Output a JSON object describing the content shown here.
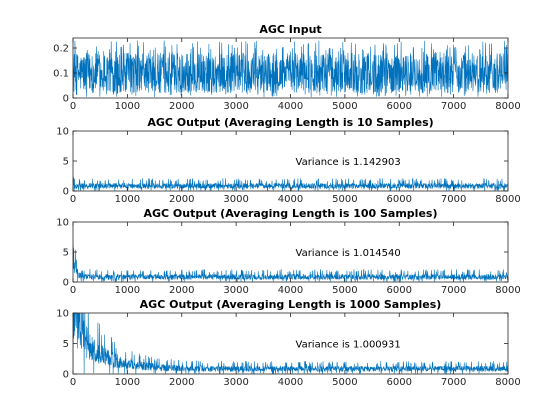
{
  "chart_data": [
    {
      "type": "line",
      "title": "AGC Input",
      "xlabel": "",
      "ylabel": "",
      "xlim": [
        0,
        8000
      ],
      "ylim": [
        0,
        0.24
      ],
      "xticks": [
        0,
        1000,
        2000,
        3000,
        4000,
        5000,
        6000,
        7000,
        8000
      ],
      "yticks": [
        0,
        0.1,
        0.2
      ],
      "grid": false,
      "color": "#0072bd",
      "series": [
        {
          "description": "noise signal, 8000 samples",
          "x_range": [
            0,
            8000
          ],
          "baseline": 0.1,
          "band_approx": [
            0.0,
            0.23
          ]
        }
      ],
      "annotation": ""
    },
    {
      "type": "line",
      "title": "AGC Output (Averaging Length is 10 Samples)",
      "xlabel": "",
      "ylabel": "",
      "xlim": [
        0,
        8000
      ],
      "ylim": [
        0,
        10
      ],
      "xticks": [
        0,
        1000,
        2000,
        3000,
        4000,
        5000,
        6000,
        7000,
        8000
      ],
      "yticks": [
        0,
        5,
        10
      ],
      "grid": false,
      "color": "#0072bd",
      "series": [
        {
          "description": "AGC output signal",
          "x_range": [
            0,
            8000
          ],
          "initial_peak": 2.5,
          "settling_length": 10,
          "band_approx": [
            0.0,
            2.0
          ]
        }
      ],
      "annotation": "Variance is 1.142903"
    },
    {
      "type": "line",
      "title": "AGC Output (Averaging Length is 100 Samples)",
      "xlabel": "",
      "ylabel": "",
      "xlim": [
        0,
        8000
      ],
      "ylim": [
        0,
        10
      ],
      "xticks": [
        0,
        1000,
        2000,
        3000,
        4000,
        5000,
        6000,
        7000,
        8000
      ],
      "yticks": [
        0,
        5,
        10
      ],
      "grid": false,
      "color": "#0072bd",
      "series": [
        {
          "description": "AGC output signal",
          "x_range": [
            0,
            8000
          ],
          "initial_peak": 5.8,
          "settling_length": 100,
          "band_approx": [
            0.0,
            2.0
          ]
        }
      ],
      "annotation": "Variance is 1.014540"
    },
    {
      "type": "line",
      "title": "AGC Output (Averaging Length is 1000 Samples)",
      "xlabel": "",
      "ylabel": "",
      "xlim": [
        0,
        8000
      ],
      "ylim": [
        0,
        10
      ],
      "xticks": [
        0,
        1000,
        2000,
        3000,
        4000,
        5000,
        6000,
        7000,
        8000
      ],
      "yticks": [
        0,
        5,
        10
      ],
      "grid": false,
      "color": "#0072bd",
      "series": [
        {
          "description": "AGC output signal",
          "x_range": [
            0,
            8000
          ],
          "initial_peak": 10,
          "settling_length": 1000,
          "band_approx": [
            0.0,
            2.0
          ]
        }
      ],
      "annotation": "Variance is 1.000931"
    }
  ]
}
